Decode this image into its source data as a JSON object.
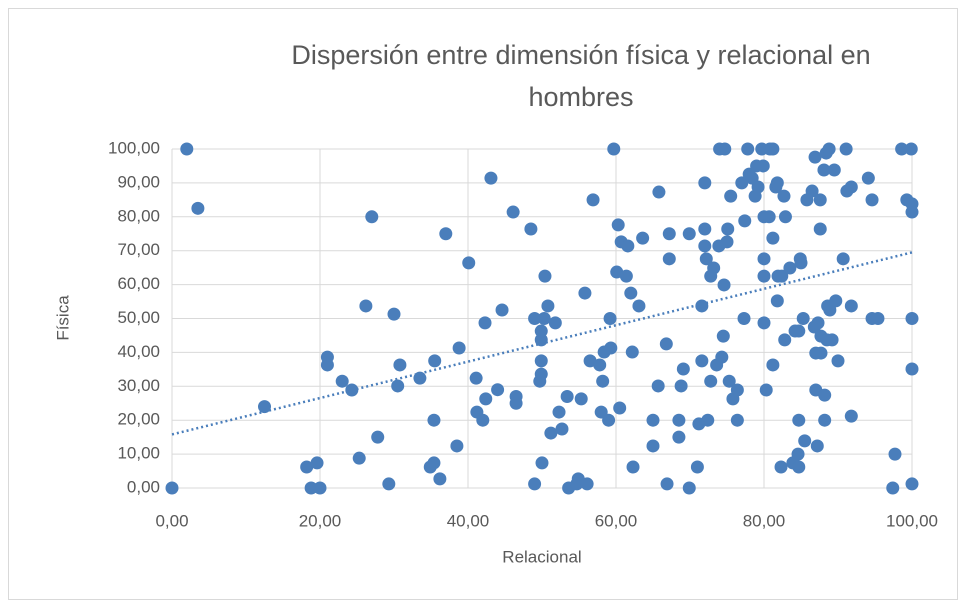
{
  "chart_data": {
    "type": "scatter",
    "title": "Dispersión entre dimensión física y relacional en hombres",
    "x_label": "Relacional",
    "y_label": "Física",
    "color": "#4a7ebb",
    "grid": true,
    "xlim": [
      0,
      100
    ],
    "ylim": [
      0,
      100
    ],
    "xticks": [
      {
        "value": 0,
        "label": "0,00"
      },
      {
        "value": 20,
        "label": "20,00"
      },
      {
        "value": 40,
        "label": "40,00"
      },
      {
        "value": 60,
        "label": "60,00"
      },
      {
        "value": 80,
        "label": "80,00"
      },
      {
        "value": 100,
        "label": "100,00"
      }
    ],
    "yticks": [
      {
        "value": 0,
        "label": "0,00"
      },
      {
        "value": 10,
        "label": "10,00"
      },
      {
        "value": 20,
        "label": "20,00"
      },
      {
        "value": 30,
        "label": "30,00"
      },
      {
        "value": 40,
        "label": "40,00"
      },
      {
        "value": 50,
        "label": "50,00"
      },
      {
        "value": 60,
        "label": "60,00"
      },
      {
        "value": 70,
        "label": "70,00"
      },
      {
        "value": 80,
        "label": "80,00"
      },
      {
        "value": 90,
        "label": "90,00"
      },
      {
        "value": 100,
        "label": "100,00"
      }
    ],
    "x": [
      0,
      2,
      3.5,
      12.5,
      18.2,
      18.8,
      19.6,
      20,
      21,
      21,
      23,
      24.3,
      25.3,
      26.2,
      27,
      27.8,
      29.3,
      30,
      30.5,
      30.8,
      33.5,
      34.9,
      35.4,
      35.4,
      35.5,
      36.2,
      37,
      38.5,
      38.8,
      40.1,
      41.1,
      41.2,
      42,
      42.3,
      42.4,
      43.1,
      44,
      44.6,
      46.1,
      46.5,
      46.5,
      48.5,
      49,
      49,
      49.7,
      49.9,
      49.9,
      49.9,
      49.9,
      50,
      50.3,
      50.4,
      50.8,
      51.2,
      51.8,
      52.3,
      52.7,
      53.4,
      53.6,
      54.7,
      54.9,
      55.3,
      55.8,
      56.1,
      56.5,
      56.9,
      57.8,
      58,
      58.2,
      58.4,
      59,
      59.2,
      59.3,
      59.7,
      60.1,
      60.3,
      60.5,
      60.7,
      61.4,
      61.6,
      62,
      62.2,
      62.3,
      63.1,
      63.6,
      65,
      65,
      65.7,
      65.8,
      66.8,
      66.9,
      67.2,
      67.2,
      68.5,
      68.5,
      68.8,
      69.1,
      69.9,
      69.9,
      71,
      71.2,
      71.6,
      71.6,
      72,
      72,
      72,
      72.2,
      72.4,
      72.8,
      72.8,
      73.2,
      73.6,
      73.9,
      74,
      74.3,
      74.5,
      74.6,
      74.7,
      75,
      75.1,
      75.3,
      75.5,
      75.8,
      76.4,
      76.4,
      77,
      77.3,
      77.4,
      77.8,
      78,
      78.4,
      78.8,
      79,
      79.2,
      79.7,
      79.9,
      80,
      80,
      80,
      80,
      80.3,
      80.7,
      80.8,
      81.2,
      81.2,
      81.2,
      81.6,
      81.8,
      81.8,
      81.9,
      82.3,
      82.4,
      82.7,
      82.8,
      82.9,
      83.5,
      83.9,
      84.2,
      84.6,
      84.7,
      84.7,
      84.7,
      84.9,
      85,
      85.3,
      85.5,
      85.8,
      86.5,
      86.8,
      86.9,
      87,
      87,
      87.2,
      87.3,
      87.6,
      87.6,
      87.7,
      87.7,
      88.1,
      88.2,
      88.2,
      88.4,
      88.5,
      88.6,
      88.8,
      88.9,
      89.2,
      89.5,
      89.7,
      90,
      90.7,
      91.1,
      91.2,
      91.8,
      91.8,
      91.8,
      94.1,
      94.6,
      94.6,
      95.4,
      97.4,
      97.7,
      98.6,
      99.3,
      99.9,
      100,
      100,
      100,
      100,
      100
    ],
    "values": [
      0,
      100,
      82.5,
      24,
      6.2,
      0,
      7.4,
      0,
      38.6,
      36.3,
      31.5,
      28.9,
      8.8,
      53.7,
      80,
      15,
      1.2,
      51.3,
      30.1,
      36.3,
      32.4,
      6.2,
      7.4,
      20,
      37.5,
      2.7,
      75,
      12.4,
      41.3,
      66.4,
      32.4,
      22.4,
      20,
      48.7,
      26.3,
      91.4,
      29,
      52.5,
      81.4,
      27,
      25,
      76.4,
      1.2,
      50,
      31.5,
      33.6,
      37.5,
      43.7,
      46.3,
      7.4,
      50,
      62.5,
      53.7,
      16.2,
      48.7,
      22.4,
      17.4,
      27,
      0,
      1.2,
      2.7,
      26.3,
      57.5,
      1.2,
      37.5,
      85,
      36.3,
      22.4,
      31.5,
      40.1,
      20,
      50,
      41.3,
      100,
      63.7,
      77.6,
      23.6,
      72.6,
      62.5,
      71.4,
      57.5,
      40.1,
      6.2,
      53.7,
      73.7,
      12.4,
      20,
      30.1,
      87.3,
      42.5,
      1.2,
      67.6,
      75,
      20,
      15,
      30.1,
      35.1,
      0,
      75,
      6.2,
      18.9,
      37.5,
      53.7,
      90,
      76.4,
      71.4,
      67.6,
      20,
      31.5,
      62.5,
      64.9,
      36.3,
      71.4,
      100,
      38.6,
      44.8,
      59.9,
      100,
      72.6,
      76.4,
      31.5,
      86.1,
      26.3,
      28.9,
      20,
      90,
      50,
      78.8,
      100,
      92.6,
      91.4,
      86.1,
      95,
      88.8,
      100,
      95,
      80,
      67.6,
      62.5,
      48.7,
      28.9,
      80,
      100,
      100,
      36.3,
      73.7,
      88.8,
      90,
      55.2,
      62.5,
      6.2,
      62.5,
      86.1,
      43.7,
      80,
      64.9,
      7.4,
      46.3,
      10,
      6.2,
      20,
      46.3,
      67.6,
      66.4,
      50,
      13.9,
      85,
      87.6,
      47.5,
      97.6,
      39.8,
      28.9,
      12.4,
      48.7,
      76.4,
      85,
      39.8,
      44.8,
      93.8,
      20,
      27.4,
      98.8,
      43.7,
      53.7,
      100,
      52.5,
      43.7,
      93.8,
      55.2,
      37.5,
      67.6,
      100,
      87.6,
      88.8,
      53.7,
      21.2,
      91.4,
      85,
      50,
      50,
      0,
      10,
      100,
      85,
      100,
      83.8,
      81.4,
      50,
      35.1,
      1.2
    ],
    "trendline": {
      "x": [
        0,
        100
      ],
      "values": [
        15.8,
        69.5
      ]
    }
  }
}
